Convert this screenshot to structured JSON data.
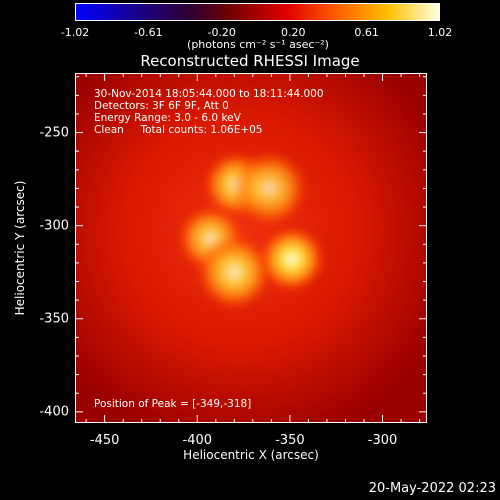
{
  "colorbar": {
    "ticks": [
      "-1.02",
      "-0.61",
      "-0.20",
      "0.20",
      "0.61",
      "1.02"
    ],
    "unit": "(photons cm⁻² s⁻¹ asec⁻²)",
    "range": [
      -1.02,
      1.02
    ]
  },
  "title": "Reconstructed RHESSI Image",
  "annotations": {
    "time": "30-Nov-2014 18:05:44.000 to 18:11:44.000",
    "detectors": "Detectors: 3F 6F 9F, Att 0",
    "energy": "Energy Range: 3.0 - 6.0 keV",
    "clean": "Clean     Total counts: 1.06E+05",
    "peak": "Position of Peak = [-349,-318]"
  },
  "axes": {
    "xlabel": "Heliocentric X (arcsec)",
    "ylabel": "Heliocentric Y (arcsec)",
    "xticks": [
      "-450",
      "-400",
      "-350",
      "-300"
    ],
    "yticks": [
      "-250",
      "-300",
      "-350",
      "-400"
    ],
    "xrange": [
      -466,
      -276
    ],
    "yrange": [
      -406,
      -218
    ]
  },
  "timestamp": "20-May-2022 02:23",
  "sources": [
    {
      "x": -379,
      "y": -278,
      "amp": 0.75,
      "sigma": 7
    },
    {
      "x": -361,
      "y": -280,
      "amp": 0.55,
      "sigma": 8
    },
    {
      "x": -393,
      "y": -307,
      "amp": 0.65,
      "sigma": 7
    },
    {
      "x": -380,
      "y": -325,
      "amp": 0.75,
      "sigma": 8
    },
    {
      "x": -349,
      "y": -318,
      "amp": 1.0,
      "sigma": 7
    }
  ]
}
